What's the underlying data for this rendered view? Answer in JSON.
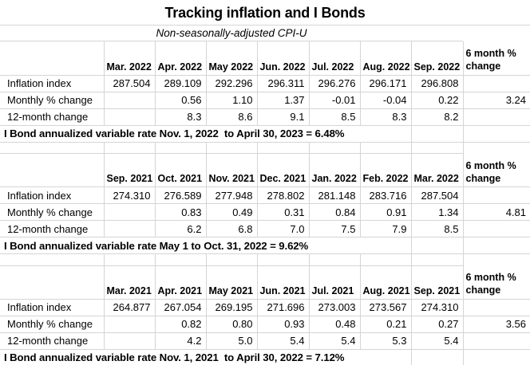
{
  "title": "Tracking inflation and I Bonds",
  "subtitle": "Non-seasonally-adjusted CPI-U",
  "tables": [
    {
      "has_spacer": false,
      "columns": [
        "",
        "Mar. 2022",
        "Apr. 2022",
        "May 2022",
        "Jun. 2022",
        "Jul. 2022",
        "Aug. 2022",
        "Sep. 2022",
        "6 month % change"
      ],
      "rows": [
        {
          "label": "Inflation index",
          "values": [
            "287.504",
            "289.109",
            "292.296",
            "296.311",
            "296.276",
            "296.171",
            "296.808",
            ""
          ]
        },
        {
          "label": "Monthly % change",
          "values": [
            "",
            "0.56",
            "1.10",
            "1.37",
            "-0.01",
            "-0.04",
            "0.22",
            "3.24"
          ]
        },
        {
          "label": "12-month change",
          "values": [
            "",
            "8.3",
            "8.6",
            "9.1",
            "8.5",
            "8.3",
            "8.2",
            ""
          ]
        }
      ],
      "footer": "I Bond annualized variable rate Nov. 1, 2022  to April 30, 2023 = 6.48%"
    },
    {
      "has_spacer": true,
      "columns": [
        "",
        "Sep. 2021",
        "Oct. 2021",
        "Nov. 2021",
        "Dec. 2021",
        "Jan. 2022",
        "Feb. 2022",
        "Mar. 2022",
        "6 month % change"
      ],
      "rows": [
        {
          "label": "Inflation index",
          "values": [
            "274.310",
            "276.589",
            "277.948",
            "278.802",
            "281.148",
            "283.716",
            "287.504",
            ""
          ]
        },
        {
          "label": "Monthly % change",
          "values": [
            "",
            "0.83",
            "0.49",
            "0.31",
            "0.84",
            "0.91",
            "1.34",
            "4.81"
          ]
        },
        {
          "label": "12-month change",
          "values": [
            "",
            "6.2",
            "6.8",
            "7.0",
            "7.5",
            "7.9",
            "8.5",
            ""
          ]
        }
      ],
      "footer": "I Bond annualized variable rate May 1 to Oct. 31, 2022 = 9.62%"
    },
    {
      "has_spacer": true,
      "columns": [
        "",
        "Mar. 2021",
        "Apr. 2021",
        "May 2021",
        "Jun. 2021",
        "Jul. 2021",
        "Aug. 2021",
        "Sep. 2021",
        "6 month % change"
      ],
      "rows": [
        {
          "label": "Inflation index",
          "values": [
            "264.877",
            "267.054",
            "269.195",
            "271.696",
            "273.003",
            "273.567",
            "274.310",
            ""
          ]
        },
        {
          "label": "Monthly % change",
          "values": [
            "",
            "0.82",
            "0.80",
            "0.93",
            "0.48",
            "0.21",
            "0.27",
            "3.56"
          ]
        },
        {
          "label": "12-month change",
          "values": [
            "",
            "4.2",
            "5.0",
            "5.4",
            "5.4",
            "5.3",
            "5.4",
            ""
          ]
        }
      ],
      "footer": "I Bond annualized variable rate Nov. 1, 2021  to April 30, 2022 = 7.12%"
    }
  ],
  "colors": {
    "gridline": "#d5d5d5",
    "text": "#000000",
    "background": "#ffffff"
  }
}
